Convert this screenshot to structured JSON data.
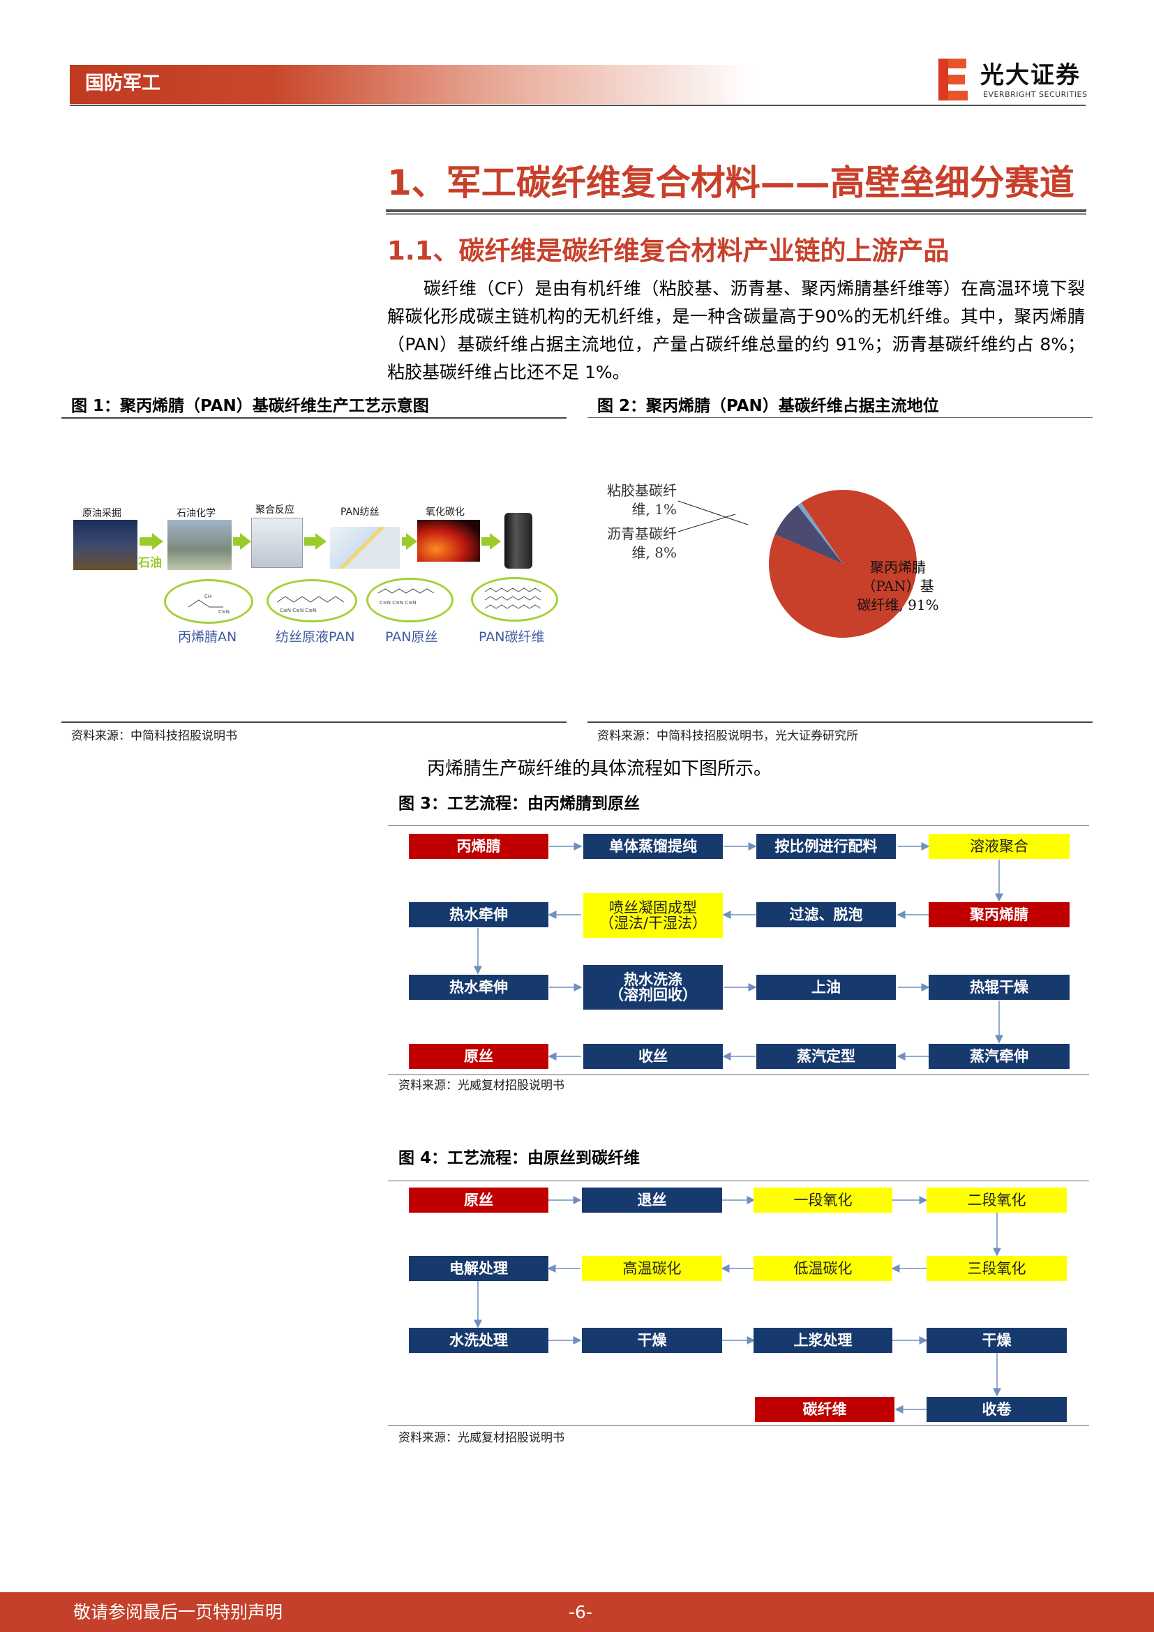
{
  "header": {
    "sector": "国防军工",
    "brand_cn": "光大证券",
    "brand_en": "EVERBRIGHT SECURITIES",
    "brand_color": "#c8402a"
  },
  "section": {
    "h1": "1、军工碳纤维复合材料——高壁垒细分赛道",
    "h2": "1.1、碳纤维是碳纤维复合材料产业链的上游产品",
    "paragraph": "碳纤维（CF）是由有机纤维（粘胶基、沥青基、聚丙烯腈基纤维等）在高温环境下裂解碳化形成碳主链机构的无机纤维，是一种含碳量高于90%的无机纤维。其中，聚丙烯腈（PAN）基碳纤维占据主流地位，产量占碳纤维总量的约 91%；沥青基碳纤维约占 8%；粘胶基碳纤维占比还不足 1%。",
    "flow_sentence": "丙烯腈生产碳纤维的具体流程如下图所示。"
  },
  "figure1": {
    "title": "图 1：聚丙烯腈（PAN）基碳纤维生产工艺示意图",
    "source": "资料来源：中简科技招股说明书",
    "stages": [
      "原油采掘",
      "石油化学",
      "聚合反应",
      "PAN纺丝",
      "氧化碳化"
    ],
    "oil_label": "石油",
    "products": [
      "丙烯腈AN",
      "纺丝原液PAN",
      "PAN原丝",
      "PAN碳纤维"
    ]
  },
  "figure2": {
    "title": "图 2：聚丙烯腈（PAN）基碳纤维占据主流地位",
    "source": "资料来源：中简科技招股说明书，光大证券研究所"
  },
  "chart_data": {
    "type": "pie",
    "title": "",
    "slices": [
      {
        "label": "聚丙烯腈（PAN）基碳纤维",
        "value": 91,
        "color": "#c8402a",
        "text_lines": [
          "聚丙烯腈",
          "（PAN）基",
          "碳纤维, 91%"
        ]
      },
      {
        "label": "沥青基碳纤维",
        "value": 8,
        "color": "#4b4a70",
        "text_lines": [
          "沥青基碳纤",
          "维, 8%"
        ]
      },
      {
        "label": "粘胶基碳纤维",
        "value": 1,
        "color": "#7aa6c8",
        "text_lines": [
          "粘胶基碳纤",
          "维, 1%"
        ]
      }
    ]
  },
  "figure3": {
    "title": "图 3：工艺流程：由丙烯腈到原丝",
    "source": "资料来源：光威复材招股说明书",
    "boxes": [
      "丙烯腈",
      "单体蒸馏提纯",
      "按比例进行配料",
      "溶液聚合",
      "热水牵伸",
      "喷丝凝固成型",
      "（湿法/干湿法）",
      "过滤、脱泡",
      "聚丙烯腈",
      "热水牵伸",
      "热水洗涤",
      "（溶剂回收）",
      "上油",
      "热辊干燥",
      "原丝",
      "收丝",
      "蒸汽定型",
      "蒸汽牵伸"
    ]
  },
  "figure4": {
    "title": "图 4：工艺流程：由原丝到碳纤维",
    "source": "资料来源：光威复材招股说明书",
    "boxes": [
      "原丝",
      "退丝",
      "一段氧化",
      "二段氧化",
      "电解处理",
      "高温碳化",
      "低温碳化",
      "三段氧化",
      "水洗处理",
      "干燥",
      "上浆处理",
      "干燥",
      "碳纤维",
      "收卷"
    ]
  },
  "footer": {
    "disclaimer": "敬请参阅最后一页特别声明",
    "page": "-6-"
  }
}
